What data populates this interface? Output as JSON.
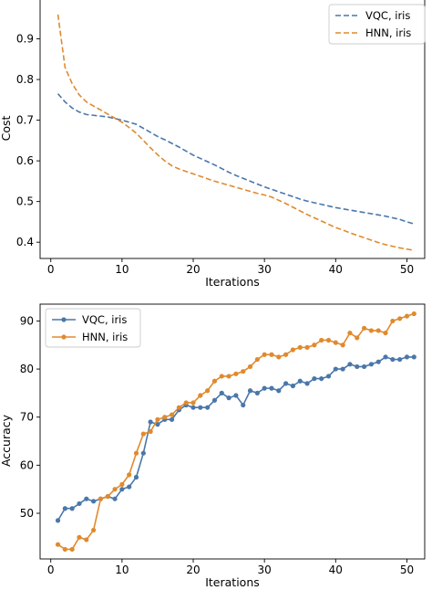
{
  "chart_data": [
    {
      "type": "line",
      "xlabel": "Iterations",
      "ylabel": "Cost",
      "xlim": [
        -1.5,
        52.5
      ],
      "ylim": [
        0.36,
        1.0
      ],
      "xticks": [
        0,
        10,
        20,
        30,
        40,
        50
      ],
      "yticks": [
        0.4,
        0.5,
        0.6,
        0.7,
        0.8,
        0.9
      ],
      "xtick_labels": [
        "0",
        "10",
        "20",
        "30",
        "40",
        "50"
      ],
      "ytick_labels": [
        "0.4",
        "0.5",
        "0.6",
        "0.7",
        "0.8",
        "0.9"
      ],
      "grid": false,
      "legend_position": "top-right",
      "series": [
        {
          "name": "VQC, iris",
          "color": "#4a77a9",
          "line_style": "dashed",
          "marker": "none",
          "x": [
            1,
            2,
            3,
            4,
            5,
            6,
            7,
            8,
            9,
            10,
            11,
            12,
            13,
            14,
            15,
            16,
            17,
            18,
            19,
            20,
            21,
            22,
            23,
            24,
            25,
            26,
            27,
            28,
            29,
            30,
            31,
            32,
            33,
            34,
            35,
            36,
            37,
            38,
            39,
            40,
            41,
            42,
            43,
            44,
            45,
            46,
            47,
            48,
            49,
            50,
            51
          ],
          "values": [
            0.765,
            0.745,
            0.73,
            0.72,
            0.714,
            0.712,
            0.71,
            0.708,
            0.704,
            0.7,
            0.695,
            0.69,
            0.68,
            0.67,
            0.66,
            0.652,
            0.643,
            0.634,
            0.624,
            0.614,
            0.606,
            0.598,
            0.59,
            0.581,
            0.572,
            0.564,
            0.557,
            0.55,
            0.543,
            0.536,
            0.53,
            0.524,
            0.518,
            0.512,
            0.506,
            0.501,
            0.497,
            0.493,
            0.489,
            0.485,
            0.482,
            0.479,
            0.476,
            0.473,
            0.47,
            0.467,
            0.464,
            0.46,
            0.456,
            0.45,
            0.445
          ]
        },
        {
          "name": "HNN, iris",
          "color": "#e08a2e",
          "line_style": "dashed",
          "marker": "none",
          "x": [
            1,
            2,
            3,
            4,
            5,
            6,
            7,
            8,
            9,
            10,
            11,
            12,
            13,
            14,
            15,
            16,
            17,
            18,
            19,
            20,
            21,
            22,
            23,
            24,
            25,
            26,
            27,
            28,
            29,
            30,
            31,
            32,
            33,
            34,
            35,
            36,
            37,
            38,
            39,
            40,
            41,
            42,
            43,
            44,
            45,
            46,
            47,
            48,
            49,
            50,
            51
          ],
          "values": [
            0.96,
            0.83,
            0.79,
            0.762,
            0.745,
            0.735,
            0.725,
            0.715,
            0.705,
            0.695,
            0.682,
            0.668,
            0.65,
            0.632,
            0.615,
            0.6,
            0.588,
            0.58,
            0.574,
            0.568,
            0.562,
            0.556,
            0.55,
            0.545,
            0.54,
            0.535,
            0.53,
            0.525,
            0.52,
            0.516,
            0.511,
            0.503,
            0.495,
            0.486,
            0.477,
            0.468,
            0.46,
            0.452,
            0.444,
            0.436,
            0.43,
            0.423,
            0.417,
            0.411,
            0.405,
            0.399,
            0.394,
            0.39,
            0.386,
            0.383,
            0.38
          ]
        }
      ]
    },
    {
      "type": "line",
      "xlabel": "Iterations",
      "ylabel": "Accuracy",
      "xlim": [
        -1.5,
        52.5
      ],
      "ylim": [
        40.5,
        93.5
      ],
      "xticks": [
        0,
        10,
        20,
        30,
        40,
        50
      ],
      "yticks": [
        50,
        60,
        70,
        80,
        90
      ],
      "xtick_labels": [
        "0",
        "10",
        "20",
        "30",
        "40",
        "50"
      ],
      "ytick_labels": [
        "50",
        "60",
        "70",
        "80",
        "90"
      ],
      "grid": false,
      "legend_position": "top-left",
      "series": [
        {
          "name": "VQC, iris",
          "color": "#4a77a9",
          "line_style": "solid",
          "marker": "circle",
          "x": [
            1,
            2,
            3,
            4,
            5,
            6,
            7,
            8,
            9,
            10,
            11,
            12,
            13,
            14,
            15,
            16,
            17,
            18,
            19,
            20,
            21,
            22,
            23,
            24,
            25,
            26,
            27,
            28,
            29,
            30,
            31,
            32,
            33,
            34,
            35,
            36,
            37,
            38,
            39,
            40,
            41,
            42,
            43,
            44,
            45,
            46,
            47,
            48,
            49,
            50,
            51
          ],
          "values": [
            48.5,
            51,
            51,
            52,
            53,
            52.5,
            53,
            53.5,
            53,
            55,
            55.5,
            57.5,
            62.5,
            69,
            68.5,
            69.5,
            69.5,
            71.5,
            72.5,
            72,
            72,
            72,
            73.5,
            75,
            74,
            74.5,
            72.5,
            75.5,
            75,
            76,
            76,
            75.5,
            77,
            76.5,
            77.5,
            77,
            78,
            78,
            78.5,
            80,
            80,
            81,
            80.5,
            80.5,
            81,
            81.5,
            82.5,
            82,
            82,
            82.5,
            82.5
          ]
        },
        {
          "name": "HNN, iris",
          "color": "#e08a2e",
          "line_style": "solid",
          "marker": "circle",
          "x": [
            1,
            2,
            3,
            4,
            5,
            6,
            7,
            8,
            9,
            10,
            11,
            12,
            13,
            14,
            15,
            16,
            17,
            18,
            19,
            20,
            21,
            22,
            23,
            24,
            25,
            26,
            27,
            28,
            29,
            30,
            31,
            32,
            33,
            34,
            35,
            36,
            37,
            38,
            39,
            40,
            41,
            42,
            43,
            44,
            45,
            46,
            47,
            48,
            49,
            50,
            51
          ],
          "values": [
            43.5,
            42.5,
            42.5,
            45,
            44.5,
            46.5,
            53,
            53.5,
            55,
            56,
            58,
            62.5,
            66.5,
            67,
            69.5,
            70,
            70.5,
            72,
            73,
            73,
            74.5,
            75.5,
            77.5,
            78.5,
            78.5,
            79,
            79.5,
            80.5,
            82,
            83,
            83,
            82.5,
            83,
            84,
            84.5,
            84.5,
            85,
            86,
            86,
            85.5,
            85,
            87.5,
            86.5,
            88.5,
            88,
            88,
            87.5,
            90,
            90.5,
            91,
            91.5
          ]
        }
      ]
    }
  ]
}
